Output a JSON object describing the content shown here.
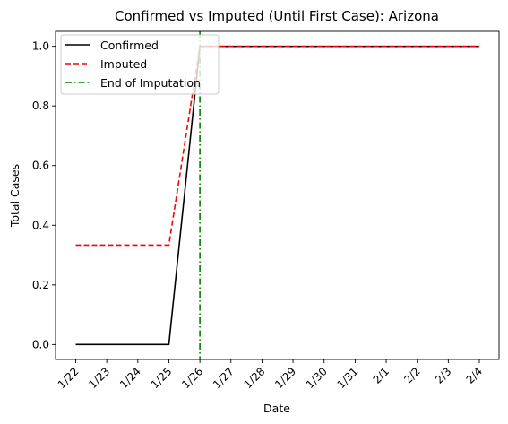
{
  "chart_data": {
    "type": "line",
    "title": "Confirmed vs Imputed (Until First Case): Arizona",
    "xlabel": "Date",
    "ylabel": "Total Cases",
    "x": [
      "1/22",
      "1/23",
      "1/24",
      "1/25",
      "1/26",
      "1/27",
      "1/28",
      "1/29",
      "1/30",
      "1/31",
      "2/1",
      "2/2",
      "2/3",
      "2/4"
    ],
    "ylim": [
      -0.05,
      1.05
    ],
    "y_ticks": [
      "0.0",
      "0.2",
      "0.4",
      "0.6",
      "0.8",
      "1.0"
    ],
    "grid": false,
    "legend_position": "upper-left",
    "series": [
      {
        "name": "Confirmed",
        "color": "#000000",
        "style": "solid",
        "values": [
          0,
          0,
          0,
          0,
          1,
          1,
          1,
          1,
          1,
          1,
          1,
          1,
          1,
          1
        ]
      },
      {
        "name": "Imputed",
        "color": "#ff0000",
        "style": "dashed",
        "values": [
          0.3333,
          0.3333,
          0.3333,
          0.3333,
          1,
          1,
          1,
          1,
          1,
          1,
          1,
          1,
          1,
          1
        ]
      }
    ],
    "vline": {
      "name": "End of Imputation",
      "x": "1/26",
      "color": "#008000",
      "style": "dashdot"
    }
  }
}
